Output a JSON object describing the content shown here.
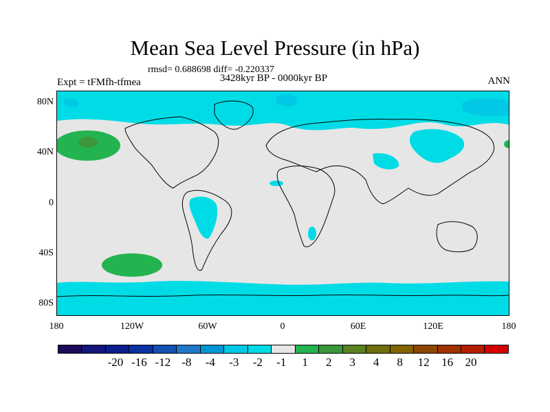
{
  "title": "Mean Sea Level Pressure (in hPa)",
  "stats": "rmsd= 0.688698 diff= -0.220337",
  "period": "3428kyr BP - 0000kyr BP",
  "experiment": "Expt = tFMfh-tfmea",
  "season": "ANN",
  "lat_labels": [
    "80N",
    "40N",
    "0",
    "40S",
    "80S"
  ],
  "lon_labels": [
    "180",
    "120W",
    "60W",
    "0",
    "60E",
    "120E",
    "180"
  ],
  "colorbar": {
    "colors": [
      "#1e0a5a",
      "#14147a",
      "#0a1e8c",
      "#0a32a0",
      "#1450b4",
      "#1e78c8",
      "#0096d2",
      "#00c8e6",
      "#00dce6",
      "#e6e6e6",
      "#23b450",
      "#3c963c",
      "#5a821e",
      "#6e6e0a",
      "#826400",
      "#8c4600",
      "#a03200",
      "#b41e00",
      "#d20000"
    ],
    "labels": [
      "-20",
      "-16",
      "-12",
      "-8",
      "-4",
      "-3",
      "-2",
      "-1",
      "1",
      "2",
      "3",
      "4",
      "8",
      "12",
      "16",
      "20"
    ]
  }
}
